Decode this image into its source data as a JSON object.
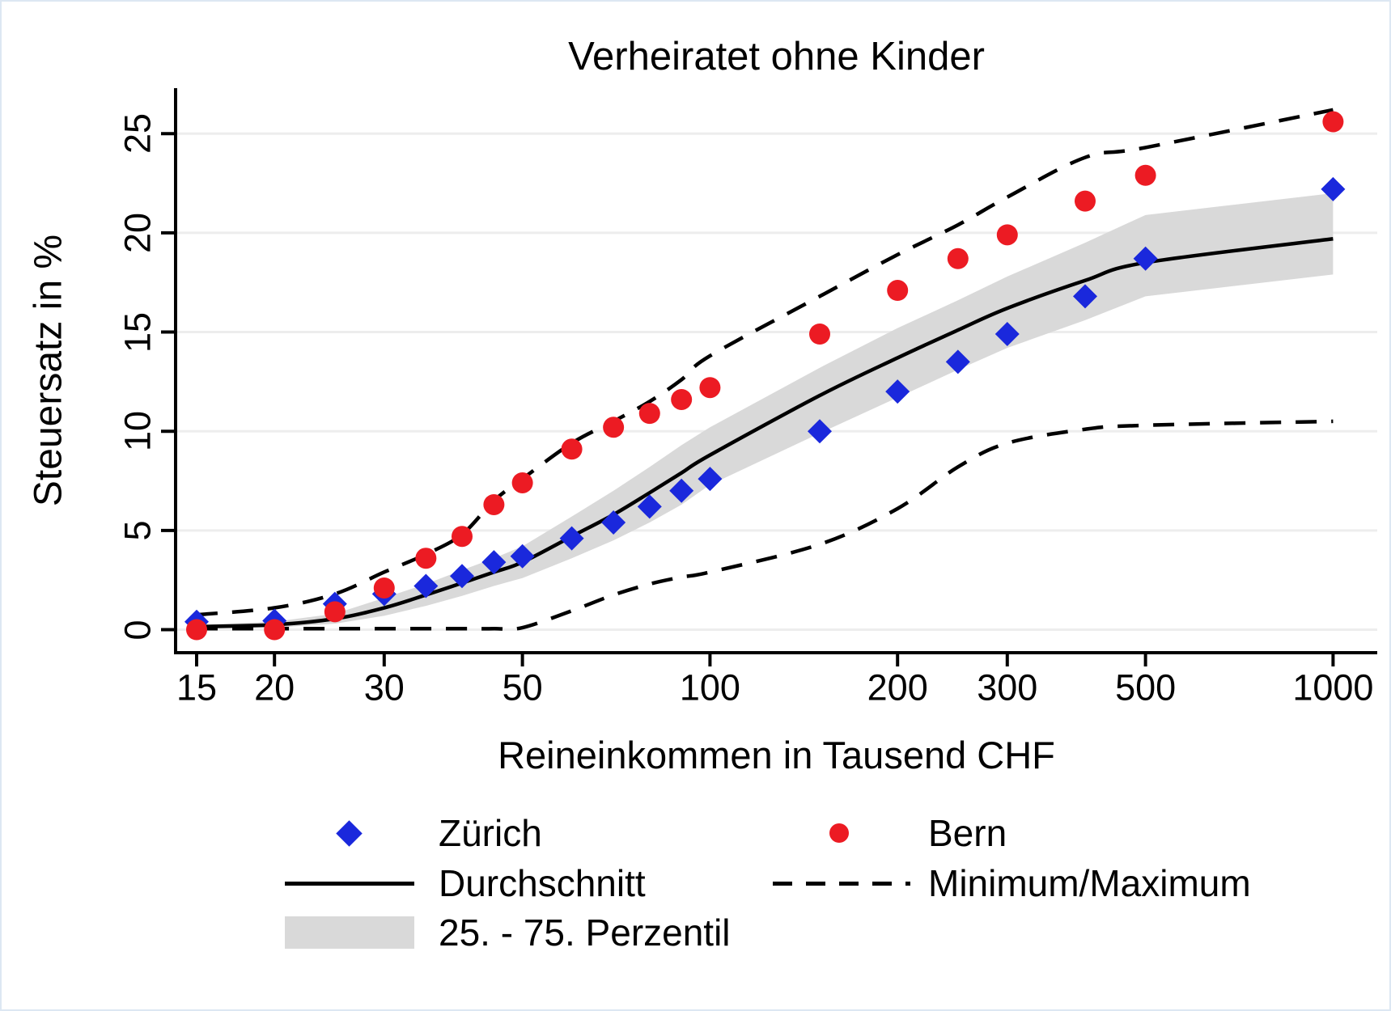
{
  "page": {
    "background": "#ffffff",
    "border_color": "#dde7f3"
  },
  "chart_data": {
    "type": "scatter-line-band",
    "title": "Verheiratet ohne Kinder",
    "xlabel": "Reineinkommen in Tausend CHF",
    "ylabel": "Steuersatz in %",
    "x_scale": "log",
    "x_ticks": [
      15,
      20,
      30,
      50,
      100,
      200,
      300,
      500,
      1000
    ],
    "y_ticks": [
      0,
      5,
      10,
      15,
      20,
      25
    ],
    "ylim": [
      0,
      27
    ],
    "xlim": [
      15,
      1000
    ],
    "grid": true,
    "grid_color": "#ededed",
    "axis_color": "#000000",
    "x": [
      15,
      20,
      25,
      30,
      35,
      40,
      45,
      50,
      60,
      70,
      80,
      90,
      100,
      150,
      200,
      250,
      300,
      400,
      500,
      1000
    ],
    "series": [
      {
        "name": "Zürich",
        "type": "scatter",
        "marker": "diamond",
        "color": "#1a28dc",
        "values": [
          0.4,
          0.45,
          1.3,
          1.8,
          2.2,
          2.7,
          3.4,
          3.7,
          4.6,
          5.4,
          6.2,
          7.0,
          7.6,
          10.0,
          12.0,
          13.5,
          14.9,
          16.8,
          18.7,
          22.2
        ]
      },
      {
        "name": "Bern",
        "type": "scatter",
        "marker": "circle",
        "color": "#ec1b23",
        "values": [
          0.0,
          0.0,
          0.9,
          2.1,
          3.6,
          4.7,
          6.3,
          7.4,
          9.1,
          10.2,
          10.9,
          11.6,
          12.2,
          14.9,
          17.1,
          18.7,
          19.9,
          21.6,
          22.9,
          25.6
        ]
      },
      {
        "name": "Durchschnitt",
        "type": "line",
        "style": "solid",
        "color": "#000000",
        "values": [
          0.15,
          0.25,
          0.55,
          1.1,
          1.75,
          2.35,
          2.9,
          3.4,
          4.7,
          5.8,
          6.9,
          7.9,
          8.8,
          11.8,
          13.7,
          15.1,
          16.2,
          17.6,
          18.5,
          19.7
        ]
      },
      {
        "name": "Maximum",
        "type": "line",
        "style": "dashed",
        "color": "#000000",
        "values": [
          0.75,
          1.1,
          1.8,
          2.9,
          3.8,
          4.8,
          6.5,
          7.6,
          9.4,
          10.5,
          11.5,
          12.6,
          13.8,
          16.8,
          18.9,
          20.4,
          21.8,
          23.8,
          24.3,
          26.2
        ]
      },
      {
        "name": "Minimum",
        "type": "line",
        "style": "dashed",
        "color": "#000000",
        "values": [
          0.05,
          0.05,
          0.05,
          0.05,
          0.05,
          0.05,
          0.05,
          0.1,
          0.95,
          1.75,
          2.3,
          2.65,
          2.9,
          4.3,
          6.1,
          8.2,
          9.4,
          10.1,
          10.3,
          10.5
        ]
      }
    ],
    "band": {
      "name": "25. - 75. Perzentil",
      "color": "#d9d9d9",
      "p25": [
        0.05,
        0.1,
        0.3,
        0.7,
        1.2,
        1.7,
        2.2,
        2.6,
        3.6,
        4.5,
        5.4,
        6.3,
        7.3,
        9.9,
        11.7,
        13.1,
        14.2,
        15.6,
        16.8,
        17.9
      ],
      "p75": [
        0.25,
        0.4,
        0.8,
        1.6,
        2.3,
        3.0,
        3.6,
        4.2,
        5.7,
        7.0,
        8.2,
        9.3,
        10.2,
        13.2,
        15.2,
        16.6,
        17.8,
        19.5,
        20.9,
        22.0
      ]
    },
    "legend_position": "bottom"
  },
  "legend": {
    "zurich": "Zürich",
    "bern": "Bern",
    "mean": "Durchschnitt",
    "minmax": "Minimum/Maximum",
    "band": "25. - 75. Perzentil"
  }
}
